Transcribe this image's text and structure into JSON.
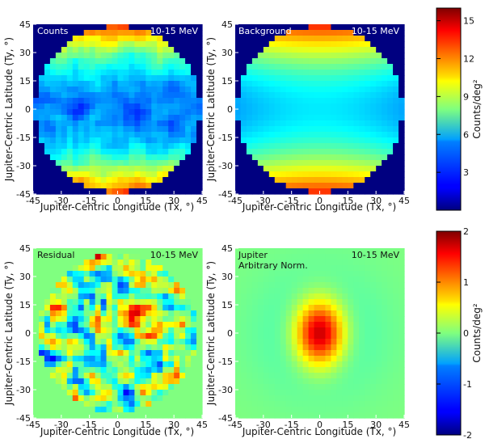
{
  "chart_data": [
    {
      "type": "heatmap",
      "panel_label": "Counts",
      "energy_label": "10-15 MeV",
      "xlabel": "Jupiter-Centric Longitude (Tx, °)",
      "ylabel": "Jupiter-Centric Latitude (Ty, °)",
      "xlim": [
        -45,
        45
      ],
      "ylim": [
        -45,
        45
      ],
      "x_ticks": [
        -45,
        -30,
        -15,
        0,
        15,
        30,
        45
      ],
      "y_ticks": [
        -45,
        -30,
        -15,
        0,
        15,
        30,
        45
      ],
      "colorscale": "jet",
      "zlim": [
        0,
        16
      ],
      "colorbar": "top",
      "region": "circular field of view radius ~45°",
      "pattern": "high counts (~10-14) in bands near Ty=+40 and Ty=-40, low counts (~3-5) in equatorial band, noisy"
    },
    {
      "type": "heatmap",
      "panel_label": "Background",
      "energy_label": "10-15 MeV",
      "xlabel": "Jupiter-Centric Longitude (Tx, °)",
      "ylabel": "Jupiter-Centric Latitude (Ty, °)",
      "xlim": [
        -45,
        45
      ],
      "ylim": [
        -45,
        45
      ],
      "x_ticks": [
        -45,
        -30,
        -15,
        0,
        15,
        30,
        45
      ],
      "y_ticks": [
        -45,
        -30,
        -15,
        0,
        15,
        30,
        45
      ],
      "colorscale": "jet",
      "zlim": [
        0,
        16
      ],
      "colorbar": "top",
      "pattern": "smooth version of counts: high (~12) near Ty=+40 and Ty=-40, minimum (~4) near Ty=0"
    },
    {
      "type": "heatmap",
      "panel_label": "Residual",
      "energy_label": "10-15 MeV",
      "xlabel": "Jupiter-Centric Longitude (Tx, °)",
      "ylabel": "Jupiter-Centric Latitude (Ty, °)",
      "xlim": [
        -45,
        45
      ],
      "ylim": [
        -45,
        45
      ],
      "x_ticks": [
        -45,
        -30,
        -15,
        0,
        15,
        30,
        45
      ],
      "y_ticks": [
        -45,
        -30,
        -15,
        0,
        15,
        30,
        45
      ],
      "colorscale": "jet",
      "zlim": [
        -2,
        2
      ],
      "colorbar": "bottom",
      "pattern": "noise fluctuations between -2 and +2 within circular field of view, zero outside"
    },
    {
      "type": "heatmap",
      "panel_label": "Jupiter",
      "panel_sublabel": "Arbitrary Norm.",
      "energy_label": "10-15 MeV",
      "xlabel": "Jupiter-Centric Longitude (Tx, °)",
      "ylabel": "Jupiter-Centric Latitude (Ty, °)",
      "xlim": [
        -45,
        45
      ],
      "ylim": [
        -45,
        45
      ],
      "x_ticks": [
        -45,
        -30,
        -15,
        0,
        15,
        30,
        45
      ],
      "y_ticks": [
        -45,
        -30,
        -15,
        0,
        15,
        30,
        45
      ],
      "colorscale": "jet",
      "zlim": [
        -2,
        2
      ],
      "colorbar": "bottom",
      "peak": {
        "x": 0,
        "y": 0,
        "value": 2.0
      },
      "pattern": "smooth elongated peak centered at (0,0), decaying to 0 by ~30°"
    }
  ],
  "colorbars": {
    "top": {
      "label": "Counts/deg²",
      "ticks": [
        3,
        6,
        9,
        12,
        15
      ],
      "range": [
        0,
        16
      ]
    },
    "bottom": {
      "label": "Counts/deg²",
      "ticks": [
        -2,
        -1,
        0,
        1,
        2
      ],
      "range": [
        -2,
        2
      ]
    }
  }
}
